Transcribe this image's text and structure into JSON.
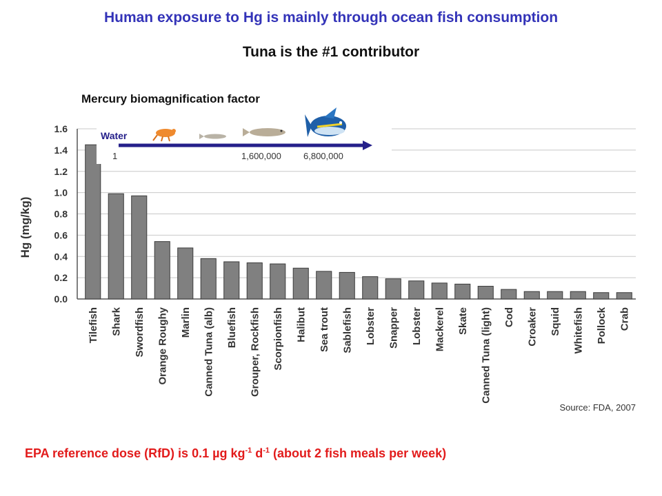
{
  "title": "Human exposure to Hg is mainly through ocean fish consumption",
  "subtitle": "Tuna is the #1 contributor",
  "inset": {
    "heading": "Mercury biomagnification factor",
    "water_label": "Water",
    "factors": [
      "1",
      "1,600,000",
      "6,800,000"
    ]
  },
  "footer": {
    "prefix": "EPA reference dose (RfD) is 0.1 µg kg",
    "exp1": "-1",
    "mid": " d",
    "exp2": "-1",
    "suffix": " (about 2 fish meals per week)"
  },
  "source": "Source: FDA, 2007",
  "colors": {
    "title": "#3333b8",
    "footer": "#e21b1b",
    "bar": "#808080",
    "arrow": "#25208a"
  },
  "chart_data": {
    "type": "bar",
    "ylabel": "Hg (mg/kg)",
    "xlabel": "",
    "ylim": [
      0,
      1.6
    ],
    "yticks": [
      "0.0",
      "0.2",
      "0.4",
      "0.6",
      "0.8",
      "1.0",
      "1.2",
      "1.4",
      "1.6"
    ],
    "grid": true,
    "categories": [
      "Tilefish",
      "Shark",
      "Swordfish",
      "Orange Roughy",
      "Marlin",
      "Canned Tuna (alb)",
      "Bluefish",
      "Grouper, Rockfish",
      "Scorpionfish",
      "Halibut",
      "Sea trout",
      "Sablefish",
      "Lobster",
      "Snapper",
      "Lobster",
      "Mackerel",
      "Skate",
      "Canned Tuna (light)",
      "Cod",
      "Croaker",
      "Squid",
      "Whitefish",
      "Pollock",
      "Crab"
    ],
    "values": [
      1.45,
      0.99,
      0.97,
      0.54,
      0.48,
      0.38,
      0.35,
      0.34,
      0.33,
      0.29,
      0.26,
      0.25,
      0.21,
      0.19,
      0.17,
      0.15,
      0.14,
      0.12,
      0.09,
      0.07,
      0.07,
      0.07,
      0.06,
      0.06
    ]
  }
}
